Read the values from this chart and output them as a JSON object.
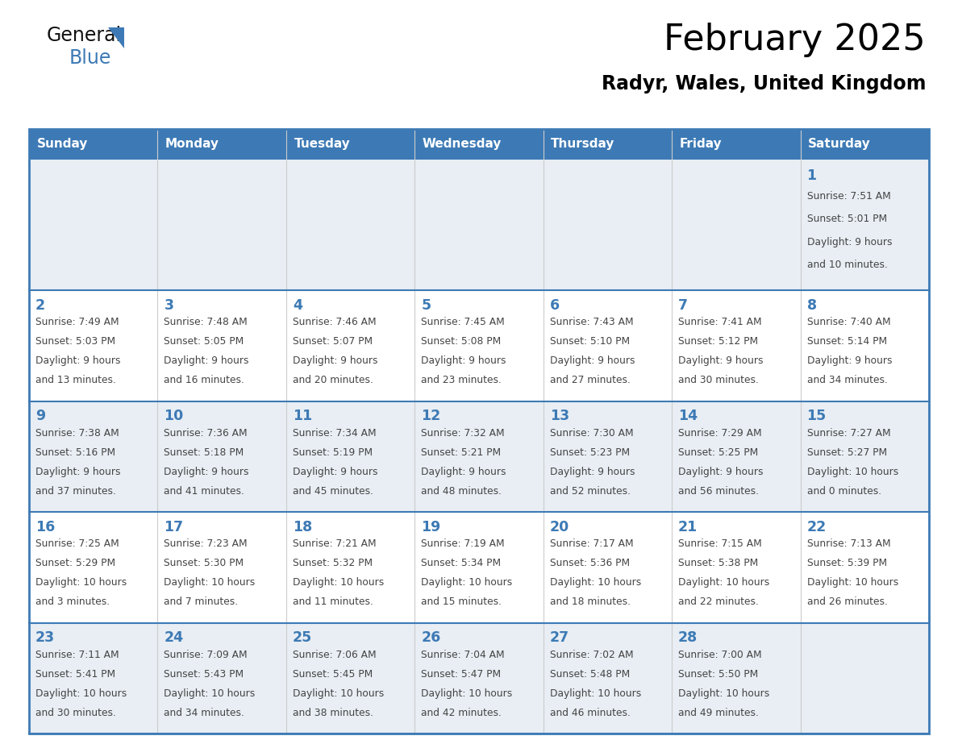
{
  "title": "February 2025",
  "subtitle": "Radyr, Wales, United Kingdom",
  "days_of_week": [
    "Sunday",
    "Monday",
    "Tuesday",
    "Wednesday",
    "Thursday",
    "Friday",
    "Saturday"
  ],
  "header_bg_color": "#3d7ab5",
  "header_text_color": "#ffffff",
  "cell_bg_light": "#e8eef4",
  "cell_bg_white": "#ffffff",
  "border_color": "#3d7ab5",
  "row_divider_color": "#3d7ab5",
  "col_divider_color": "#cccccc",
  "title_color": "#000000",
  "subtitle_color": "#000000",
  "day_number_color": "#3d7ab5",
  "cell_text_color": "#444444",
  "weeks": [
    [
      {
        "day": null,
        "sunrise": null,
        "sunset": null,
        "daylight": null
      },
      {
        "day": null,
        "sunrise": null,
        "sunset": null,
        "daylight": null
      },
      {
        "day": null,
        "sunrise": null,
        "sunset": null,
        "daylight": null
      },
      {
        "day": null,
        "sunrise": null,
        "sunset": null,
        "daylight": null
      },
      {
        "day": null,
        "sunrise": null,
        "sunset": null,
        "daylight": null
      },
      {
        "day": null,
        "sunrise": null,
        "sunset": null,
        "daylight": null
      },
      {
        "day": 1,
        "sunrise": "7:51 AM",
        "sunset": "5:01 PM",
        "daylight": "9 hours and 10 minutes."
      }
    ],
    [
      {
        "day": 2,
        "sunrise": "7:49 AM",
        "sunset": "5:03 PM",
        "daylight": "9 hours and 13 minutes."
      },
      {
        "day": 3,
        "sunrise": "7:48 AM",
        "sunset": "5:05 PM",
        "daylight": "9 hours and 16 minutes."
      },
      {
        "day": 4,
        "sunrise": "7:46 AM",
        "sunset": "5:07 PM",
        "daylight": "9 hours and 20 minutes."
      },
      {
        "day": 5,
        "sunrise": "7:45 AM",
        "sunset": "5:08 PM",
        "daylight": "9 hours and 23 minutes."
      },
      {
        "day": 6,
        "sunrise": "7:43 AM",
        "sunset": "5:10 PM",
        "daylight": "9 hours and 27 minutes."
      },
      {
        "day": 7,
        "sunrise": "7:41 AM",
        "sunset": "5:12 PM",
        "daylight": "9 hours and 30 minutes."
      },
      {
        "day": 8,
        "sunrise": "7:40 AM",
        "sunset": "5:14 PM",
        "daylight": "9 hours and 34 minutes."
      }
    ],
    [
      {
        "day": 9,
        "sunrise": "7:38 AM",
        "sunset": "5:16 PM",
        "daylight": "9 hours and 37 minutes."
      },
      {
        "day": 10,
        "sunrise": "7:36 AM",
        "sunset": "5:18 PM",
        "daylight": "9 hours and 41 minutes."
      },
      {
        "day": 11,
        "sunrise": "7:34 AM",
        "sunset": "5:19 PM",
        "daylight": "9 hours and 45 minutes."
      },
      {
        "day": 12,
        "sunrise": "7:32 AM",
        "sunset": "5:21 PM",
        "daylight": "9 hours and 48 minutes."
      },
      {
        "day": 13,
        "sunrise": "7:30 AM",
        "sunset": "5:23 PM",
        "daylight": "9 hours and 52 minutes."
      },
      {
        "day": 14,
        "sunrise": "7:29 AM",
        "sunset": "5:25 PM",
        "daylight": "9 hours and 56 minutes."
      },
      {
        "day": 15,
        "sunrise": "7:27 AM",
        "sunset": "5:27 PM",
        "daylight": "10 hours and 0 minutes."
      }
    ],
    [
      {
        "day": 16,
        "sunrise": "7:25 AM",
        "sunset": "5:29 PM",
        "daylight": "10 hours and 3 minutes."
      },
      {
        "day": 17,
        "sunrise": "7:23 AM",
        "sunset": "5:30 PM",
        "daylight": "10 hours and 7 minutes."
      },
      {
        "day": 18,
        "sunrise": "7:21 AM",
        "sunset": "5:32 PM",
        "daylight": "10 hours and 11 minutes."
      },
      {
        "day": 19,
        "sunrise": "7:19 AM",
        "sunset": "5:34 PM",
        "daylight": "10 hours and 15 minutes."
      },
      {
        "day": 20,
        "sunrise": "7:17 AM",
        "sunset": "5:36 PM",
        "daylight": "10 hours and 18 minutes."
      },
      {
        "day": 21,
        "sunrise": "7:15 AM",
        "sunset": "5:38 PM",
        "daylight": "10 hours and 22 minutes."
      },
      {
        "day": 22,
        "sunrise": "7:13 AM",
        "sunset": "5:39 PM",
        "daylight": "10 hours and 26 minutes."
      }
    ],
    [
      {
        "day": 23,
        "sunrise": "7:11 AM",
        "sunset": "5:41 PM",
        "daylight": "10 hours and 30 minutes."
      },
      {
        "day": 24,
        "sunrise": "7:09 AM",
        "sunset": "5:43 PM",
        "daylight": "10 hours and 34 minutes."
      },
      {
        "day": 25,
        "sunrise": "7:06 AM",
        "sunset": "5:45 PM",
        "daylight": "10 hours and 38 minutes."
      },
      {
        "day": 26,
        "sunrise": "7:04 AM",
        "sunset": "5:47 PM",
        "daylight": "10 hours and 42 minutes."
      },
      {
        "day": 27,
        "sunrise": "7:02 AM",
        "sunset": "5:48 PM",
        "daylight": "10 hours and 46 minutes."
      },
      {
        "day": 28,
        "sunrise": "7:00 AM",
        "sunset": "5:50 PM",
        "daylight": "10 hours and 49 minutes."
      },
      {
        "day": null,
        "sunrise": null,
        "sunset": null,
        "daylight": null
      }
    ]
  ]
}
